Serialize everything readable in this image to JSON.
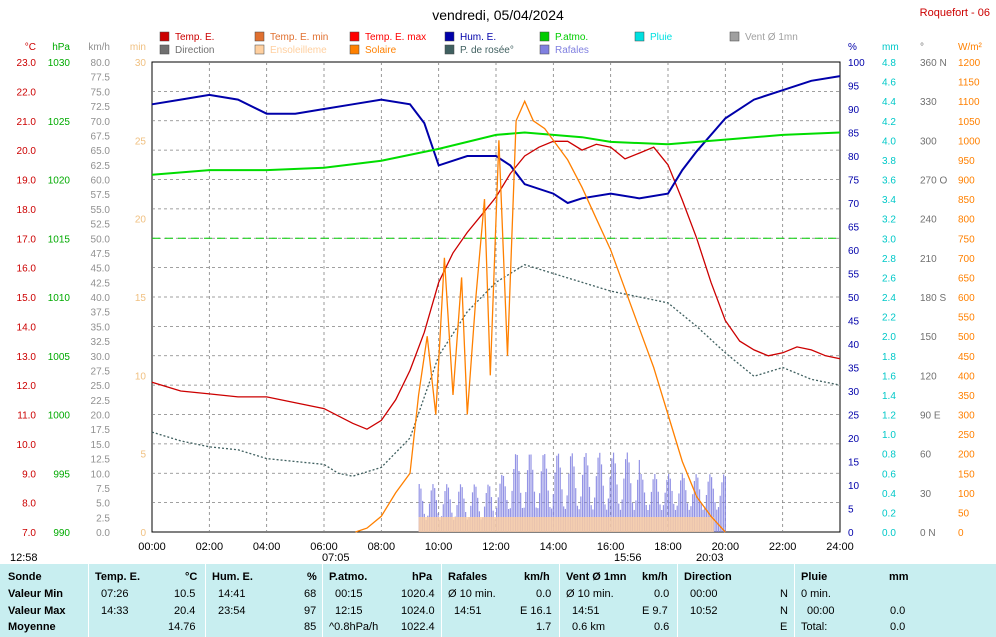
{
  "title": "vendredi, 05/04/2024",
  "station": "Roquefort - 06",
  "legend": [
    {
      "label": "Temp. E.",
      "color": "#cc0000"
    },
    {
      "label": "Temp. E. min",
      "color": "#e07030"
    },
    {
      "label": "Temp. E. max",
      "color": "#ff0000"
    },
    {
      "label": "Hum. E.",
      "color": "#0000aa"
    },
    {
      "label": "P.atmo.",
      "color": "#00cc00"
    },
    {
      "label": "Pluie",
      "color": "#00e0e0"
    },
    {
      "label": "Vent Ø 1mn",
      "color": "#a0a0a0"
    },
    {
      "label": "Direction",
      "color": "#707070"
    },
    {
      "label": "Ensoleilleme",
      "color": "#ffd0a0"
    },
    {
      "label": "Solaire",
      "color": "#ff8000"
    },
    {
      "label": "P. de rosée°",
      "color": "#406060"
    },
    {
      "label": "Rafales",
      "color": "#8080e0"
    }
  ],
  "axes": {
    "temp": {
      "unit": "°C",
      "ticks": [
        "23.0",
        "22.0",
        "21.0",
        "20.0",
        "19.0",
        "18.0",
        "17.0",
        "16.0",
        "15.0",
        "14.0",
        "13.0",
        "12.0",
        "11.0",
        "10.0",
        "9.0",
        "8.0",
        "7.0"
      ],
      "color": "#cc0000"
    },
    "hpa": {
      "unit": "hPa",
      "ticks": [
        "1030",
        "1025",
        "1020",
        "1015",
        "1010",
        "1005",
        "1000",
        "995",
        "990"
      ],
      "color": "#00aa00"
    },
    "kmh": {
      "unit": "km/h",
      "ticks": [
        "80.0",
        "77.5",
        "75.0",
        "72.5",
        "70.0",
        "67.5",
        "65.0",
        "62.5",
        "60.0",
        "57.5",
        "55.0",
        "52.5",
        "50.0",
        "47.5",
        "45.0",
        "42.5",
        "40.0",
        "37.5",
        "35.0",
        "32.5",
        "30.0",
        "27.5",
        "25.0",
        "22.5",
        "20.0",
        "17.5",
        "15.0",
        "12.5",
        "10.0",
        "7.5",
        "5.0",
        "2.5",
        "0.0"
      ],
      "color": "#909090"
    },
    "min": {
      "unit": "min",
      "ticks": [
        "30",
        "25",
        "20",
        "15",
        "10",
        "5",
        "0"
      ],
      "color": "#f0c080"
    },
    "pct": {
      "unit": "%",
      "ticks": [
        "100",
        "95",
        "90",
        "85",
        "80",
        "75",
        "70",
        "65",
        "60",
        "55",
        "50",
        "45",
        "40",
        "35",
        "30",
        "25",
        "20",
        "15",
        "10",
        "5",
        "0"
      ],
      "color": "#0000aa"
    },
    "mm": {
      "unit": "mm",
      "ticks": [
        "4.8",
        "4.6",
        "4.4",
        "4.2",
        "4.0",
        "3.8",
        "3.6",
        "3.4",
        "3.2",
        "3.0",
        "2.8",
        "2.6",
        "2.4",
        "2.2",
        "2.0",
        "1.8",
        "1.6",
        "1.4",
        "1.2",
        "1.0",
        "0.8",
        "0.6",
        "0.4",
        "0.2",
        "0.0"
      ],
      "color": "#00c8c8"
    },
    "deg": {
      "unit": "°",
      "ticks": [
        "360 N",
        "330",
        "300",
        "270 O",
        "240",
        "210",
        "180 S",
        "150",
        "120",
        "90 E",
        "60",
        "30",
        "0 N"
      ],
      "color": "#707070"
    },
    "wm2": {
      "unit": "W/m²",
      "ticks": [
        "1200",
        "1150",
        "1100",
        "1050",
        "1000",
        "950",
        "900",
        "850",
        "800",
        "750",
        "700",
        "650",
        "600",
        "550",
        "500",
        "450",
        "400",
        "350",
        "300",
        "250",
        "200",
        "150",
        "100",
        "50",
        "0"
      ],
      "color": "#ff8000"
    },
    "time": [
      "00:00",
      "02:00",
      "04:00",
      "06:00",
      "08:00",
      "10:00",
      "12:00",
      "14:00",
      "16:00",
      "18:00",
      "20:00",
      "22:00",
      "24:00"
    ]
  },
  "markers": {
    "moonrise": "12:58",
    "sunrise": "07:05",
    "noon": "15:56",
    "sunset": "20:03"
  },
  "table": {
    "rowlabels": {
      "title": "Sonde",
      "min": "Valeur Min",
      "max": "Valeur Max",
      "avg": "Moyenne"
    },
    "temp": {
      "h1": "Temp. E.",
      "h2": "°C",
      "min_t": "07:26",
      "min_v": "10.5",
      "max_t": "14:33",
      "max_v": "20.4",
      "avg": "14.76"
    },
    "hum": {
      "h1": "Hum. E.",
      "h2": "%",
      "min_t": "14:41",
      "min_v": "68",
      "max_t": "23:54",
      "max_v": "97",
      "avg": "85"
    },
    "patmo": {
      "h1": "P.atmo.",
      "h2": "hPa",
      "min_t": "00:15",
      "min_v": "1020.4",
      "max_t": "12:15",
      "max_v": "1024.0",
      "avg_l": "^0.8hPa/h",
      "avg": "1022.4"
    },
    "raf": {
      "h1": "Rafales",
      "h2": "km/h",
      "min_l": "Ø 10 min.",
      "min_v": "0.0",
      "max_t": "14:51",
      "max_v": "E 16.1",
      "avg": "1.7"
    },
    "vent": {
      "h1": "Vent Ø 1mn",
      "h2": "km/h",
      "min_l": "Ø 10 min.",
      "min_v": "0.0",
      "max_t": "14:51",
      "max_v": "E 9.7",
      "avg_l": "0.6 km",
      "avg": "0.6"
    },
    "dir": {
      "h1": "Direction",
      "min_t": "00:00",
      "min_v": "N",
      "max_t": "10:52",
      "max_v": "N",
      "avg": "E"
    },
    "pluie": {
      "h1": "Pluie",
      "h2": "mm",
      "min_l": "0 min.",
      "max_t": "00:00",
      "max_v": "0.0",
      "avg_l": "Total:",
      "avg": "0.0"
    }
  },
  "chart_data": {
    "type": "line",
    "xlim": [
      0,
      24
    ],
    "series": [
      {
        "name": "Temp. E.",
        "axis": "temp",
        "color": "#cc0000",
        "points": [
          [
            0,
            12.1
          ],
          [
            1,
            11.8
          ],
          [
            2,
            11.7
          ],
          [
            3,
            11.6
          ],
          [
            4,
            11.6
          ],
          [
            5,
            11.4
          ],
          [
            6,
            11.2
          ],
          [
            7,
            10.7
          ],
          [
            7.5,
            10.5
          ],
          [
            8,
            10.8
          ],
          [
            8.5,
            11.5
          ],
          [
            9,
            12.5
          ],
          [
            9.5,
            13.8
          ],
          [
            10,
            15.5
          ],
          [
            10.5,
            16.5
          ],
          [
            11,
            17.2
          ],
          [
            11.5,
            17.8
          ],
          [
            12,
            18.4
          ],
          [
            12.5,
            19.2
          ],
          [
            13,
            19.8
          ],
          [
            13.5,
            20.1
          ],
          [
            14,
            20.3
          ],
          [
            14.5,
            20.3
          ],
          [
            15,
            20.0
          ],
          [
            15.5,
            20.2
          ],
          [
            16,
            20.1
          ],
          [
            16.5,
            19.7
          ],
          [
            17,
            19.9
          ],
          [
            17.5,
            20.1
          ],
          [
            18,
            19.5
          ],
          [
            18.5,
            18.3
          ],
          [
            19,
            17.0
          ],
          [
            19.5,
            15.5
          ],
          [
            20,
            14.2
          ],
          [
            20.5,
            13.5
          ],
          [
            21,
            13.2
          ],
          [
            21.5,
            13.0
          ],
          [
            22,
            13.1
          ],
          [
            22.5,
            13.3
          ],
          [
            23,
            13.2
          ],
          [
            23.5,
            13.0
          ],
          [
            24,
            12.9
          ]
        ]
      },
      {
        "name": "Hum. E.",
        "axis": "pct",
        "color": "#0000aa",
        "points": [
          [
            0,
            91
          ],
          [
            1,
            92
          ],
          [
            2,
            93
          ],
          [
            3,
            92
          ],
          [
            4,
            89
          ],
          [
            5,
            89
          ],
          [
            6,
            90
          ],
          [
            7,
            91
          ],
          [
            8,
            92
          ],
          [
            9,
            91
          ],
          [
            9.5,
            87
          ],
          [
            10,
            78
          ],
          [
            11,
            80
          ],
          [
            12,
            80
          ],
          [
            12.5,
            78
          ],
          [
            13,
            74
          ],
          [
            14,
            72
          ],
          [
            14.5,
            70
          ],
          [
            15,
            71
          ],
          [
            16,
            72
          ],
          [
            17,
            71
          ],
          [
            18,
            72
          ],
          [
            18.5,
            77
          ],
          [
            19,
            81
          ],
          [
            20,
            88
          ],
          [
            21,
            92
          ],
          [
            22,
            94
          ],
          [
            23,
            96
          ],
          [
            24,
            97
          ]
        ]
      },
      {
        "name": "P.atmo.",
        "axis": "hpa",
        "color": "#00dd00",
        "points": [
          [
            0,
            1020.4
          ],
          [
            2,
            1020.8
          ],
          [
            4,
            1020.8
          ],
          [
            6,
            1021.0
          ],
          [
            8,
            1021.6
          ],
          [
            10,
            1022.6
          ],
          [
            12,
            1023.8
          ],
          [
            13,
            1024.0
          ],
          [
            15,
            1023.6
          ],
          [
            16,
            1023.2
          ],
          [
            18,
            1023.0
          ],
          [
            20,
            1023.4
          ],
          [
            22,
            1023.8
          ],
          [
            24,
            1024.0
          ]
        ]
      },
      {
        "name": "P. de rosée°",
        "axis": "temp",
        "color": "#406060",
        "points": [
          [
            0,
            10.4
          ],
          [
            1,
            10.1
          ],
          [
            2,
            9.9
          ],
          [
            3,
            9.8
          ],
          [
            4,
            9.5
          ],
          [
            5,
            9.4
          ],
          [
            6,
            9.3
          ],
          [
            6.5,
            9.0
          ],
          [
            7,
            8.9
          ],
          [
            8,
            9.2
          ],
          [
            9,
            10.2
          ],
          [
            10,
            13.0
          ],
          [
            11,
            14.5
          ],
          [
            12,
            15.5
          ],
          [
            12.5,
            15.8
          ],
          [
            13,
            16.1
          ],
          [
            14,
            15.8
          ],
          [
            15,
            15.5
          ],
          [
            16,
            15.2
          ],
          [
            17,
            15.0
          ],
          [
            17.5,
            14.9
          ],
          [
            18,
            14.8
          ],
          [
            19,
            14.0
          ],
          [
            20,
            13.1
          ],
          [
            21,
            12.3
          ],
          [
            22,
            12.6
          ],
          [
            23,
            12.2
          ],
          [
            24,
            12.0
          ]
        ]
      },
      {
        "name": "Solaire",
        "axis": "wm2",
        "color": "#ff8000",
        "points": [
          [
            7.1,
            0
          ],
          [
            7.5,
            10
          ],
          [
            8,
            40
          ],
          [
            8.5,
            100
          ],
          [
            9,
            150
          ],
          [
            9.3,
            350
          ],
          [
            9.6,
            500
          ],
          [
            9.9,
            300
          ],
          [
            10.2,
            700
          ],
          [
            10.5,
            350
          ],
          [
            10.8,
            650
          ],
          [
            11,
            300
          ],
          [
            11.3,
            600
          ],
          [
            11.6,
            850
          ],
          [
            11.8,
            400
          ],
          [
            12.1,
            1000
          ],
          [
            12.4,
            450
          ],
          [
            12.7,
            1050
          ],
          [
            13,
            1100
          ],
          [
            13.3,
            1050
          ],
          [
            13.7,
            1030
          ],
          [
            14,
            1000
          ],
          [
            14.5,
            950
          ],
          [
            15,
            880
          ],
          [
            15.5,
            800
          ],
          [
            16,
            720
          ],
          [
            16.5,
            620
          ],
          [
            17,
            520
          ],
          [
            17.5,
            420
          ],
          [
            18,
            300
          ],
          [
            18.5,
            180
          ],
          [
            19,
            90
          ],
          [
            19.5,
            40
          ],
          [
            20,
            0
          ]
        ]
      }
    ],
    "reference_lines": [
      {
        "value": 17.0,
        "axis": "temp",
        "color": "#00cc00",
        "style": "dashed"
      }
    ]
  }
}
